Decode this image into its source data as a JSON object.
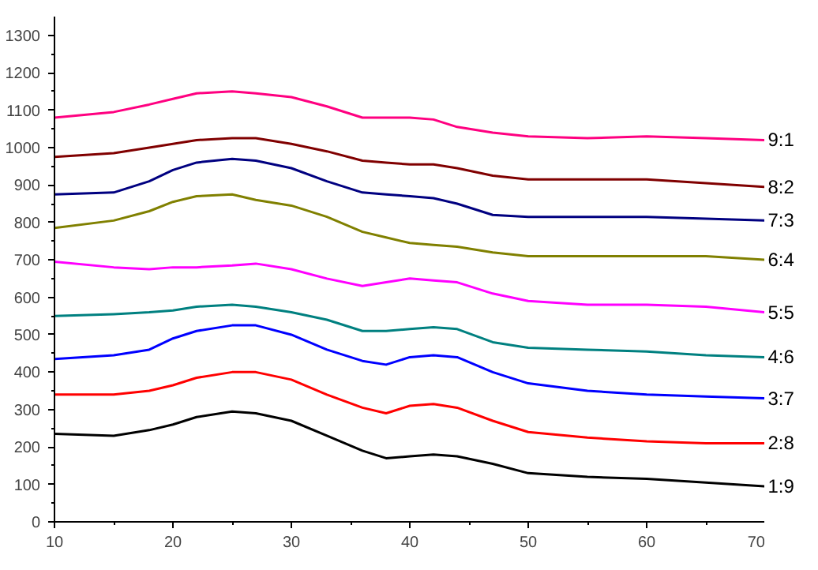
{
  "chart_data": {
    "type": "line",
    "x": [
      10,
      15,
      18,
      20,
      22,
      25,
      27,
      30,
      33,
      36,
      38,
      40,
      42,
      44,
      47,
      50,
      55,
      60,
      65,
      70
    ],
    "xlim": [
      10,
      70
    ],
    "xticks": [
      10,
      20,
      30,
      40,
      50,
      60,
      70
    ],
    "ylim": [
      0,
      1350
    ],
    "yticks": [
      0,
      100,
      200,
      300,
      400,
      500,
      600,
      700,
      800,
      900,
      1000,
      1100,
      1200,
      1300
    ],
    "grid": false,
    "legend": false,
    "marker": "none",
    "line_style": "solid",
    "series": [
      {
        "name": "1:9",
        "color": "#000000",
        "values": [
          235,
          230,
          245,
          260,
          280,
          295,
          290,
          270,
          230,
          190,
          170,
          175,
          180,
          175,
          155,
          130,
          120,
          115,
          105,
          95
        ]
      },
      {
        "name": "2:8",
        "color": "#ff0000",
        "values": [
          340,
          340,
          350,
          365,
          385,
          400,
          400,
          380,
          340,
          305,
          290,
          310,
          315,
          305,
          270,
          240,
          225,
          215,
          210,
          210
        ]
      },
      {
        "name": "3:7",
        "color": "#0000ff",
        "values": [
          435,
          445,
          460,
          490,
          510,
          525,
          525,
          500,
          460,
          430,
          420,
          440,
          445,
          440,
          400,
          370,
          350,
          340,
          335,
          330
        ]
      },
      {
        "name": "4:6",
        "color": "#008080",
        "values": [
          550,
          555,
          560,
          565,
          575,
          580,
          575,
          560,
          540,
          510,
          510,
          515,
          520,
          515,
          480,
          465,
          460,
          455,
          445,
          440
        ]
      },
      {
        "name": "5:5",
        "color": "#ff00ff",
        "values": [
          695,
          680,
          675,
          680,
          680,
          685,
          690,
          675,
          650,
          630,
          640,
          650,
          645,
          640,
          610,
          590,
          580,
          580,
          575,
          560
        ]
      },
      {
        "name": "6:4",
        "color": "#808000",
        "values": [
          785,
          805,
          830,
          855,
          870,
          875,
          860,
          845,
          815,
          775,
          760,
          745,
          740,
          735,
          720,
          710,
          710,
          710,
          710,
          700
        ]
      },
      {
        "name": "7:3",
        "color": "#000080",
        "values": [
          875,
          880,
          910,
          940,
          960,
          970,
          965,
          945,
          910,
          880,
          875,
          870,
          865,
          850,
          820,
          815,
          815,
          815,
          810,
          805
        ]
      },
      {
        "name": "8:2",
        "color": "#800000",
        "values": [
          975,
          985,
          1000,
          1010,
          1020,
          1025,
          1025,
          1010,
          990,
          965,
          960,
          955,
          955,
          945,
          925,
          915,
          915,
          915,
          905,
          895
        ]
      },
      {
        "name": "9:1",
        "color": "#ff0080",
        "values": [
          1080,
          1095,
          1115,
          1130,
          1145,
          1150,
          1145,
          1135,
          1110,
          1080,
          1080,
          1080,
          1075,
          1055,
          1040,
          1030,
          1025,
          1030,
          1025,
          1020
        ]
      }
    ]
  }
}
